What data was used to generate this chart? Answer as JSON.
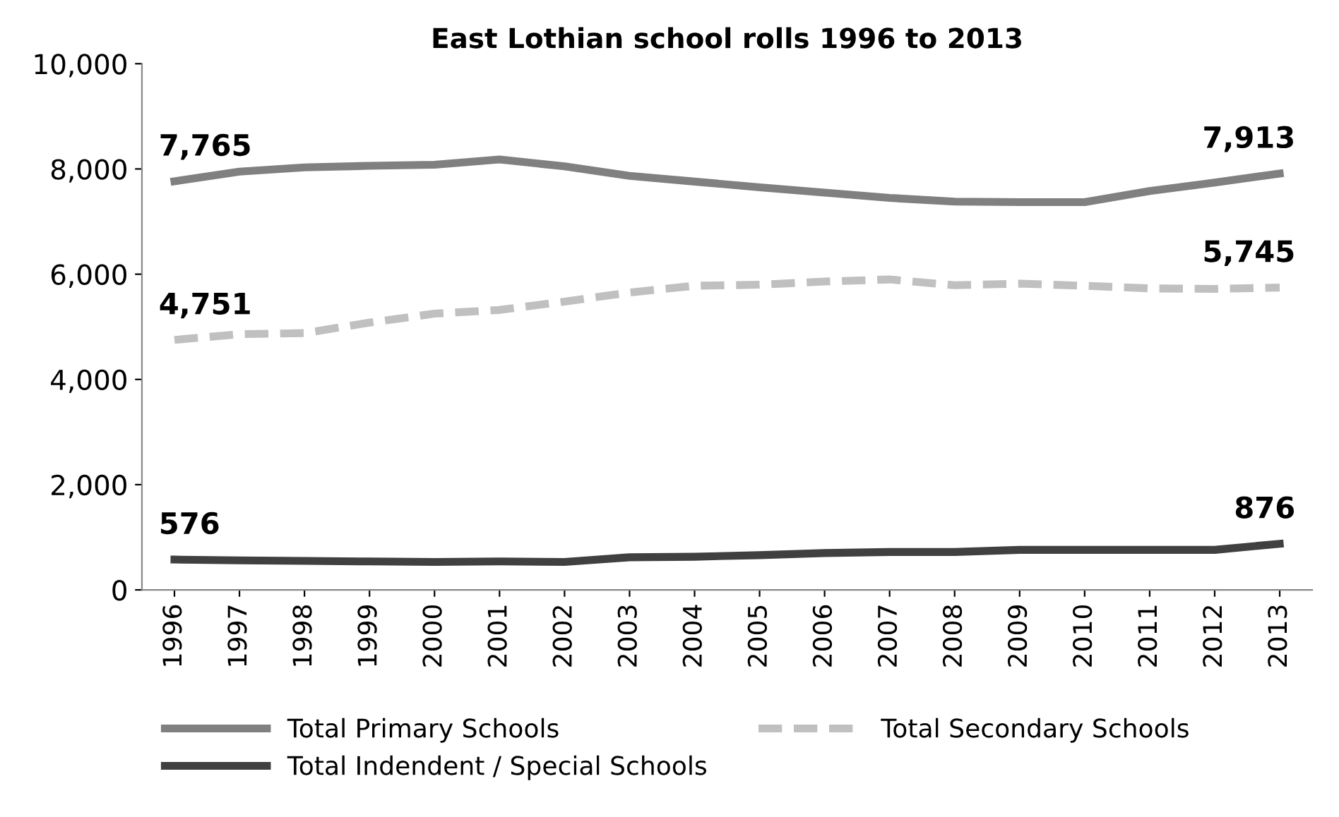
{
  "chart_data": {
    "type": "line",
    "title": "East Lothian school rolls 1996 to 2013",
    "categories": [
      "1996",
      "1997",
      "1998",
      "1999",
      "2000",
      "2001",
      "2002",
      "2003",
      "2004",
      "2005",
      "2006",
      "2007",
      "2008",
      "2009",
      "2010",
      "2011",
      "2012",
      "2013"
    ],
    "series": [
      {
        "name": "Total Primary Schools",
        "color": "#808080",
        "line_style": "solid",
        "values": [
          7765,
          7950,
          8030,
          8060,
          8080,
          8180,
          8050,
          7870,
          7760,
          7650,
          7550,
          7450,
          7380,
          7370,
          7370,
          7580,
          7740,
          7913
        ],
        "value_labels": [
          "7,765",
          null,
          null,
          null,
          null,
          null,
          null,
          null,
          null,
          null,
          null,
          null,
          null,
          null,
          null,
          null,
          null,
          "7,913"
        ]
      },
      {
        "name": "Total Secondary Schools",
        "color": "#c0c0c0",
        "line_style": "dashed",
        "values": [
          4751,
          4860,
          4880,
          5080,
          5250,
          5320,
          5480,
          5650,
          5780,
          5800,
          5860,
          5900,
          5790,
          5820,
          5780,
          5730,
          5720,
          5745
        ],
        "value_labels": [
          "4,751",
          null,
          null,
          null,
          null,
          null,
          null,
          null,
          null,
          null,
          null,
          null,
          null,
          null,
          null,
          null,
          null,
          "5,745"
        ]
      },
      {
        "name": "Total Indendent / Special Schools",
        "color": "#404040",
        "line_style": "solid",
        "values": [
          576,
          560,
          550,
          540,
          530,
          540,
          530,
          620,
          630,
          660,
          700,
          720,
          720,
          760,
          760,
          760,
          760,
          876
        ],
        "value_labels": [
          "576",
          null,
          null,
          null,
          null,
          null,
          null,
          null,
          null,
          null,
          null,
          null,
          null,
          null,
          null,
          null,
          null,
          "876"
        ]
      }
    ],
    "ylim": [
      0,
      10000
    ],
    "yticks": [
      0,
      {
        "value": 2000,
        "label": "2,000"
      },
      {
        "value": 4000,
        "label": "4,000"
      },
      {
        "value": 6000,
        "label": "6,000"
      },
      {
        "value": 8000,
        "label": "8,000"
      },
      {
        "value": 10000,
        "label": "10,000"
      }
    ],
    "grid": false,
    "legend": "bottom",
    "marker": "none"
  }
}
